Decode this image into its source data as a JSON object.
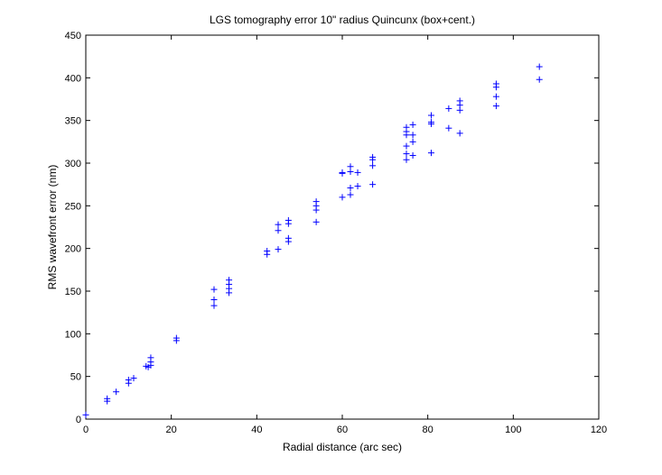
{
  "chart_data": {
    "type": "scatter",
    "title": "LGS tomography error 10\" radius Quincunx (box+cent.)",
    "xlabel": "Radial distance (arc sec)",
    "ylabel": "RMS wavefront error (nm)",
    "xlim": [
      0,
      120
    ],
    "ylim": [
      0,
      450
    ],
    "xticks": [
      0,
      20,
      40,
      60,
      80,
      100,
      120
    ],
    "yticks": [
      0,
      50,
      100,
      150,
      200,
      250,
      300,
      350,
      400,
      450
    ],
    "xtick_labels": [
      "0",
      "20",
      "40",
      "60",
      "80",
      "100",
      "120"
    ],
    "ytick_labels": [
      "0",
      "50",
      "100",
      "150",
      "200",
      "250",
      "300",
      "350",
      "400",
      "450"
    ],
    "marker": "+",
    "grid": false,
    "legend": "none",
    "colors": {
      "marker": "#0000ff",
      "axes": "#000000",
      "background": "#ffffff"
    },
    "series": [
      {
        "points": [
          [
            0.0,
            5
          ],
          [
            5.0,
            21
          ],
          [
            5.0,
            24
          ],
          [
            7.1,
            32
          ],
          [
            10.0,
            42
          ],
          [
            10.0,
            46
          ],
          [
            11.2,
            48
          ],
          [
            14.1,
            62
          ],
          [
            14.6,
            61
          ],
          [
            15.2,
            63
          ],
          [
            15.2,
            67
          ],
          [
            15.2,
            72
          ],
          [
            21.2,
            92
          ],
          [
            21.2,
            95
          ],
          [
            30.0,
            133
          ],
          [
            30.0,
            140
          ],
          [
            30.0,
            152
          ],
          [
            33.5,
            148
          ],
          [
            33.5,
            153
          ],
          [
            33.5,
            158
          ],
          [
            33.5,
            163
          ],
          [
            42.4,
            193
          ],
          [
            42.4,
            197
          ],
          [
            45.0,
            199
          ],
          [
            45.0,
            221
          ],
          [
            45.0,
            228
          ],
          [
            47.4,
            208
          ],
          [
            47.4,
            212
          ],
          [
            47.4,
            229
          ],
          [
            47.4,
            233
          ],
          [
            53.9,
            231
          ],
          [
            53.9,
            245
          ],
          [
            53.9,
            250
          ],
          [
            53.9,
            255
          ],
          [
            60.0,
            260
          ],
          [
            60.0,
            288
          ],
          [
            60.0,
            289
          ],
          [
            61.9,
            263
          ],
          [
            61.9,
            271
          ],
          [
            61.9,
            290
          ],
          [
            61.9,
            296
          ],
          [
            63.6,
            273
          ],
          [
            63.6,
            289
          ],
          [
            67.1,
            275
          ],
          [
            67.1,
            297
          ],
          [
            67.1,
            304
          ],
          [
            67.1,
            307
          ],
          [
            75.0,
            304
          ],
          [
            75.0,
            311
          ],
          [
            75.0,
            320
          ],
          [
            75.0,
            333
          ],
          [
            75.0,
            337
          ],
          [
            75.0,
            342
          ],
          [
            76.5,
            309
          ],
          [
            76.5,
            325
          ],
          [
            76.5,
            333
          ],
          [
            76.5,
            345
          ],
          [
            80.8,
            312
          ],
          [
            80.8,
            346
          ],
          [
            80.8,
            348
          ],
          [
            80.8,
            356
          ],
          [
            84.9,
            341
          ],
          [
            84.9,
            364
          ],
          [
            87.5,
            335
          ],
          [
            87.5,
            362
          ],
          [
            87.5,
            368
          ],
          [
            87.5,
            373
          ],
          [
            96.0,
            367
          ],
          [
            96.0,
            378
          ],
          [
            96.0,
            389
          ],
          [
            96.0,
            393
          ],
          [
            106.1,
            398
          ],
          [
            106.1,
            413
          ]
        ]
      }
    ]
  }
}
